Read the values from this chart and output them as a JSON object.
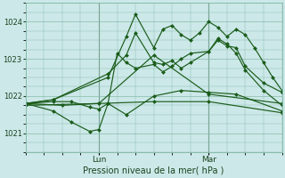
{
  "background_color": "#cce8e8",
  "grid_color": "#88bbaa",
  "line_color": "#1a5c1a",
  "ylim": [
    1020.5,
    1024.5
  ],
  "yticks": [
    1021,
    1022,
    1023,
    1024
  ],
  "ylabel": "Pression niveau de la mer( hPa )",
  "figsize": [
    3.2,
    2.0
  ],
  "dpi": 100,
  "x_lun": 8,
  "x_mar": 20,
  "xlim_min": 0,
  "xlim_max": 28,
  "series": [
    [
      0,
      1021.8,
      4,
      1021.75,
      8,
      1021.8,
      14,
      1023.1,
      20,
      1022.05,
      28,
      1021.8
    ],
    [
      0,
      1021.8,
      3,
      1021.6,
      5,
      1021.3,
      7,
      1021.05,
      8,
      1021.1,
      9,
      1021.8,
      11,
      1021.5,
      14,
      1022.0,
      17,
      1022.15,
      20,
      1022.1,
      23,
      1022.05,
      28,
      1021.6
    ],
    [
      0,
      1021.8,
      3,
      1021.85,
      5,
      1021.85,
      7,
      1021.7,
      8,
      1021.65,
      9,
      1021.8,
      10,
      1023.15,
      11,
      1022.9,
      12,
      1022.75,
      14,
      1022.85,
      15,
      1022.65,
      16,
      1022.8,
      17,
      1023.0,
      18,
      1023.15,
      20,
      1023.2,
      21,
      1023.5,
      22,
      1023.35,
      23,
      1023.3,
      24,
      1022.8,
      26,
      1022.35,
      28,
      1022.1
    ],
    [
      0,
      1021.8,
      3,
      1021.9,
      9,
      1022.5,
      11,
      1023.6,
      12,
      1024.2,
      14,
      1023.3,
      15,
      1023.8,
      16,
      1023.9,
      17,
      1023.65,
      18,
      1023.5,
      19,
      1023.7,
      20,
      1024.0,
      21,
      1023.85,
      22,
      1023.6,
      23,
      1023.8,
      24,
      1023.65,
      25,
      1023.3,
      26,
      1022.9,
      27,
      1022.5,
      28,
      1022.15
    ],
    [
      0,
      1021.8,
      3,
      1021.9,
      9,
      1022.6,
      11,
      1023.1,
      12,
      1023.7,
      14,
      1022.9,
      15,
      1022.85,
      16,
      1022.95,
      17,
      1022.75,
      18,
      1022.9,
      20,
      1023.2,
      21,
      1023.55,
      22,
      1023.4,
      23,
      1023.15,
      24,
      1022.7,
      26,
      1022.15,
      28,
      1021.75
    ],
    [
      0,
      1021.75,
      8,
      1021.8,
      14,
      1021.85,
      20,
      1021.85,
      28,
      1021.55
    ]
  ]
}
